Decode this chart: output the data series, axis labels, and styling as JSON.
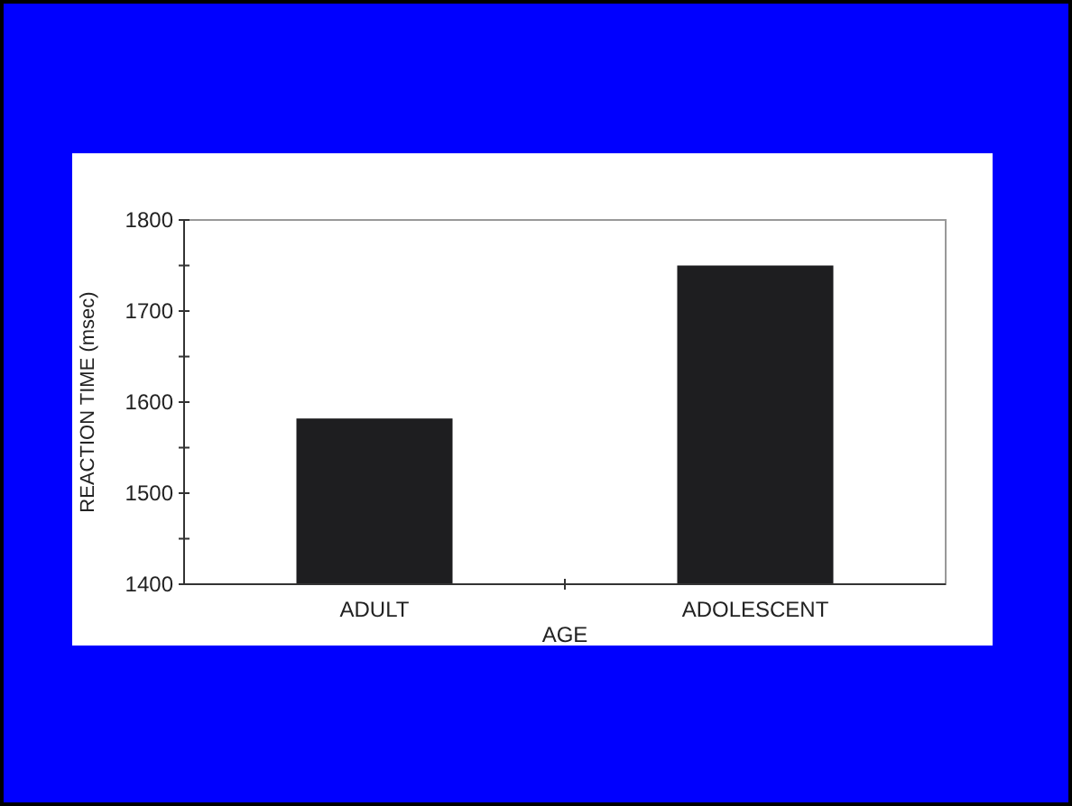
{
  "chart_data": {
    "type": "bar",
    "xlabel": "AGE",
    "ylabel": "REACTION TIME (msec)",
    "categories": [
      "ADULT",
      "ADOLESCENT"
    ],
    "values": [
      1582,
      1750
    ],
    "color": "#1e1e20",
    "ylim": [
      1400,
      1800
    ],
    "yticks": [
      1400,
      {
        "value": 1450,
        "label": null
      },
      1500,
      {
        "value": 1550,
        "label": null
      },
      1600,
      {
        "value": 1650,
        "label": null
      },
      1700,
      {
        "value": 1750,
        "label": null
      },
      1800
    ],
    "grid": false
  }
}
